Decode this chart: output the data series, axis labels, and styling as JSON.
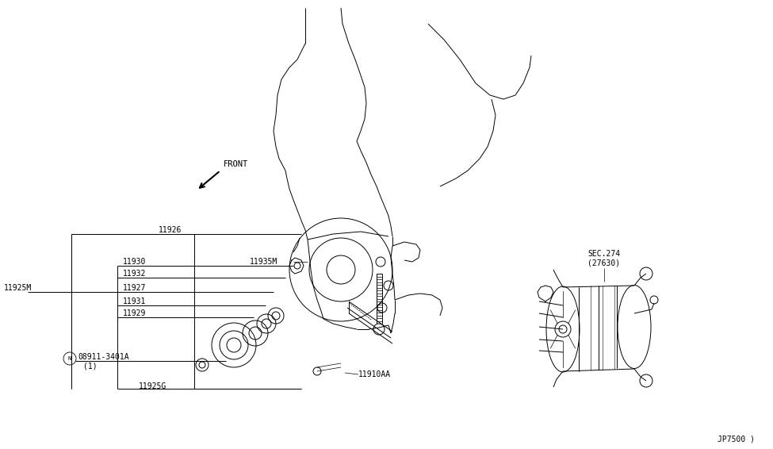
{
  "bg_color": "#ffffff",
  "line_color": "#000000",
  "fig_width": 9.75,
  "fig_height": 5.66,
  "dpi": 100,
  "lw": 0.7,
  "font_size": 7,
  "diagram_code": "JP7500 )",
  "front_label": "FRONT",
  "sec_line1": "SEC.274",
  "sec_line2": "(27630)"
}
